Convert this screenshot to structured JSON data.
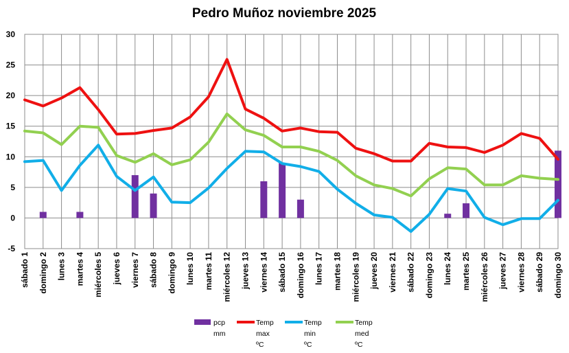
{
  "chart_data": {
    "type": "bar+line",
    "title": "Pedro Muñoz noviembre 2025",
    "xlabel": "",
    "ylabel": "",
    "ylim": [
      -5,
      30
    ],
    "yticks": [
      -5,
      0,
      5,
      10,
      15,
      20,
      25,
      30
    ],
    "grid": true,
    "legend_position": "bottom",
    "categories": [
      "sábado 1",
      "domingo 2",
      "lunes 3",
      "martes 4",
      "miércoles 5",
      "jueves 6",
      "viernes 7",
      "sábado 8",
      "domingo 9",
      "lunes 10",
      "martes 11",
      "miércoles 12",
      "jueves 13",
      "viernes 14",
      "sábado 15",
      "domingo 16",
      "lunes 17",
      "martes 18",
      "miércoles 19",
      "jueves 20",
      "viernes 21",
      "sábado 22",
      "domingo 23",
      "lunes 24",
      "martes 25",
      "miércoles 26",
      "jueves 27",
      "viernes 28",
      "sábado 29",
      "domingo 30"
    ],
    "series": [
      {
        "name": "pcp mm",
        "kind": "bar",
        "color": "#7030A0",
        "values": [
          0,
          1,
          0,
          1,
          0,
          0,
          7,
          4,
          0,
          0,
          0,
          0,
          0,
          6,
          9,
          3,
          0,
          0,
          0,
          0,
          0,
          0,
          0,
          0.7,
          2.4,
          0,
          0,
          0,
          0,
          11
        ]
      },
      {
        "name": "Temp max ºC",
        "kind": "line",
        "color": "#EE1111",
        "values": [
          19.3,
          18.3,
          19.6,
          21.3,
          17.7,
          13.7,
          13.8,
          14.3,
          14.7,
          16.5,
          19.8,
          25.9,
          17.8,
          16.3,
          14.2,
          14.7,
          14.1,
          14.0,
          11.4,
          10.5,
          9.3,
          9.3,
          12.2,
          11.6,
          11.5,
          10.7,
          11.9,
          13.8,
          13.0,
          9.6
        ]
      },
      {
        "name": "Temp min ºC",
        "kind": "line",
        "color": "#11AEE8",
        "values": [
          9.2,
          9.4,
          4.5,
          8.6,
          11.9,
          6.8,
          4.5,
          6.7,
          2.6,
          2.5,
          4.9,
          8.1,
          10.9,
          10.8,
          8.9,
          8.4,
          7.6,
          4.7,
          2.4,
          0.5,
          0.1,
          -2.2,
          0.6,
          4.8,
          4.4,
          0.1,
          -1.1,
          -0.1,
          -0.1,
          2.9
        ]
      },
      {
        "name": "Temp med ºC",
        "kind": "line",
        "color": "#92D050",
        "values": [
          14.2,
          13.9,
          12.0,
          15.0,
          14.8,
          10.2,
          9.1,
          10.5,
          8.7,
          9.5,
          12.4,
          17.0,
          14.4,
          13.5,
          11.6,
          11.6,
          10.9,
          9.4,
          6.9,
          5.4,
          4.8,
          3.6,
          6.4,
          8.2,
          8.0,
          5.4,
          5.4,
          6.9,
          6.5,
          6.3
        ]
      }
    ],
    "legend": [
      {
        "lines": [
          "pcp",
          "mm"
        ],
        "kind": "bar",
        "color": "#7030A0"
      },
      {
        "lines": [
          "Temp",
          "max",
          "ºC"
        ],
        "kind": "line",
        "color": "#EE1111"
      },
      {
        "lines": [
          "Temp",
          "min",
          "ºC"
        ],
        "kind": "line",
        "color": "#11AEE8"
      },
      {
        "lines": [
          "Temp",
          "med",
          "ºC"
        ],
        "kind": "line",
        "color": "#92D050"
      }
    ]
  }
}
